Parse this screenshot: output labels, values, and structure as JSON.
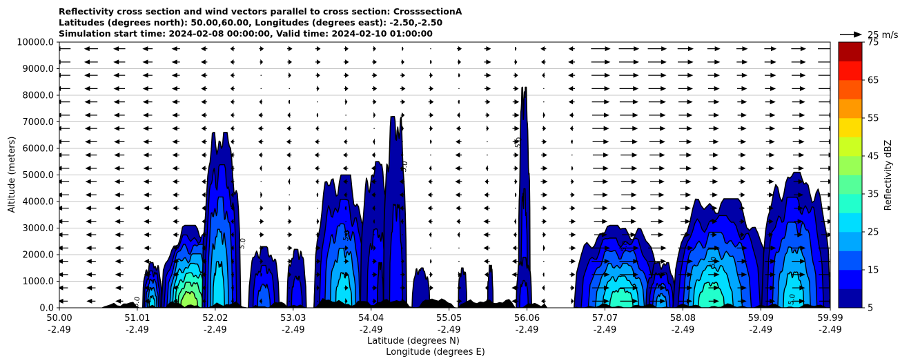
{
  "chart_data": {
    "type": "contour",
    "title_lines": [
      "Reflectivity cross section and wind vectors parallel to cross section: CrosssectionA",
      "Latitudes (degrees north): 50.00,60.00, Longitudes (degrees east): -2.50,-2.50",
      "Simulation start time: 2024-02-08 00:00:00, Valid time: 2024-02-10 01:00:00"
    ],
    "ylabel": "Altitude (meters)",
    "xlabel": "Latitude (degrees N)",
    "xlabel2": "Longitude (degrees E)",
    "xlim": [
      50.0,
      59.99
    ],
    "ylim": [
      0,
      10000
    ],
    "grid": "horizontal",
    "x_ticks": [
      {
        "lat": "50.00",
        "lon": "-2.49",
        "v": 50.0
      },
      {
        "lat": "51.01",
        "lon": "-2.49",
        "v": 51.01
      },
      {
        "lat": "52.02",
        "lon": "-2.49",
        "v": 52.02
      },
      {
        "lat": "53.03",
        "lon": "-2.49",
        "v": 53.03
      },
      {
        "lat": "54.04",
        "lon": "-2.49",
        "v": 54.04
      },
      {
        "lat": "55.05",
        "lon": "-2.49",
        "v": 55.05
      },
      {
        "lat": "56.06",
        "lon": "-2.49",
        "v": 56.06
      },
      {
        "lat": "57.07",
        "lon": "-2.49",
        "v": 57.07
      },
      {
        "lat": "58.08",
        "lon": "-2.49",
        "v": 58.08
      },
      {
        "lat": "59.09",
        "lon": "-2.49",
        "v": 59.09
      },
      {
        "lat": "59.99",
        "lon": "-2.49",
        "v": 59.99
      }
    ],
    "y_ticks": [
      {
        "label": "0.0",
        "v": 0
      },
      {
        "label": "1000.0",
        "v": 1000
      },
      {
        "label": "2000.0",
        "v": 2000
      },
      {
        "label": "3000.0",
        "v": 3000
      },
      {
        "label": "4000.0",
        "v": 4000
      },
      {
        "label": "5000.0",
        "v": 5000
      },
      {
        "label": "6000.0",
        "v": 6000
      },
      {
        "label": "7000.0",
        "v": 7000
      },
      {
        "label": "8000.0",
        "v": 8000
      },
      {
        "label": "9000.0",
        "v": 9000
      },
      {
        "label": "10000.0",
        "v": 10000
      }
    ],
    "colorbar": {
      "label": "Reflectivity dBZ",
      "min": 5,
      "max": 75,
      "tick_labels": [
        "5",
        "15",
        "25",
        "35",
        "45",
        "55",
        "65",
        "75"
      ],
      "ticks": [
        5,
        15,
        25,
        35,
        45,
        55,
        65,
        75
      ],
      "colors": [
        "#0000a8",
        "#0000ff",
        "#0055ff",
        "#00a8ff",
        "#00ddff",
        "#22ffcc",
        "#55ff99",
        "#99ff55",
        "#ccff22",
        "#ffdd00",
        "#ff9900",
        "#ff5500",
        "#ff1100",
        "#aa0000"
      ]
    },
    "vector_key": {
      "label": "25 m/s",
      "speed": 25
    },
    "contour_label": "5.0",
    "cells": [
      {
        "x0": 51.08,
        "x1": 51.33,
        "top": 1700,
        "peak": 28,
        "cx": 51.2
      },
      {
        "x0": 51.32,
        "x1": 52.26,
        "top": 3100,
        "peak": 42,
        "cx": 51.65
      },
      {
        "x0": 51.85,
        "x1": 52.35,
        "top": 6600,
        "peak": 30,
        "cx": 52.05
      },
      {
        "x0": 52.45,
        "x1": 52.85,
        "top": 2300,
        "peak": 20,
        "cx": 52.65
      },
      {
        "x0": 52.95,
        "x1": 53.2,
        "top": 2200,
        "peak": 15,
        "cx": 53.08
      },
      {
        "x0": 53.3,
        "x1": 53.55,
        "top": 1400,
        "peak": 10,
        "cx": 53.4
      },
      {
        "x0": 53.3,
        "x1": 54.0,
        "top": 5000,
        "peak": 28,
        "cx": 53.7
      },
      {
        "x0": 53.9,
        "x1": 54.35,
        "top": 5500,
        "peak": 14,
        "cx": 54.1
      },
      {
        "x0": 54.2,
        "x1": 54.5,
        "top": 7200,
        "peak": 12,
        "cx": 54.38
      },
      {
        "x0": 54.12,
        "x1": 54.2,
        "top": 1700,
        "peak": 8,
        "cx": 54.16
      },
      {
        "x0": 54.57,
        "x1": 54.8,
        "top": 1500,
        "peak": 9,
        "cx": 54.65
      },
      {
        "x0": 55.17,
        "x1": 55.28,
        "top": 1500,
        "peak": 8,
        "cx": 55.22
      },
      {
        "x0": 55.55,
        "x1": 55.62,
        "top": 1600,
        "peak": 6,
        "cx": 55.58
      },
      {
        "x0": 55.95,
        "x1": 56.1,
        "top": 8300,
        "peak": 14,
        "cx": 56.02
      },
      {
        "x0": 55.92,
        "x1": 56.12,
        "top": 1900,
        "peak": 12,
        "cx": 56.02
      },
      {
        "x0": 56.67,
        "x1": 57.8,
        "top": 3100,
        "peak": 32,
        "cx": 57.3
      },
      {
        "x0": 57.6,
        "x1": 58.0,
        "top": 1700,
        "peak": 22,
        "cx": 57.8
      },
      {
        "x0": 57.95,
        "x1": 59.2,
        "top": 4100,
        "peak": 32,
        "cx": 58.4
      },
      {
        "x0": 59.1,
        "x1": 59.99,
        "top": 5100,
        "peak": 28,
        "cx": 59.5
      }
    ]
  }
}
